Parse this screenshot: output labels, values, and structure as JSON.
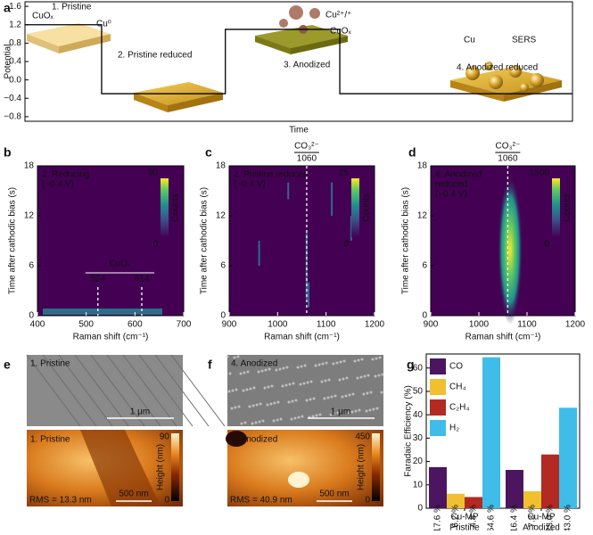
{
  "chart_data": [
    {
      "type": "line",
      "panel": "a",
      "ylabel": "Potential",
      "xlabel": "Time",
      "color": "#000000",
      "x": [
        0,
        14,
        14,
        36.6,
        36.6,
        57.5,
        57.5,
        100
      ],
      "values": [
        1.2,
        1.2,
        -0.3,
        -0.3,
        1.1,
        1.1,
        -0.3,
        -0.3
      ],
      "xlim": [
        0,
        100
      ],
      "ylim": [
        -0.9,
        1.7
      ],
      "yticks": [
        {
          "value": -0.8,
          "label": "−0.8"
        },
        {
          "value": -0.4,
          "label": "−0.4"
        },
        {
          "value": 0,
          "label": "0.0"
        },
        0.4,
        0.8,
        1.2,
        1.6
      ],
      "annotations": [
        "1. Pristine",
        "CuOₓ",
        "Cu⁰",
        "2. Pristine reduced",
        "3. Anodized",
        "Cu²⁺/⁺",
        "CuOₓ",
        "4. Anodized reduced",
        "Cu",
        "SERS"
      ]
    },
    {
      "type": "heatmap",
      "panel": "b",
      "label_lines": [
        "2. Reducing",
        "(−0.4 V)"
      ],
      "xlabel": "Raman shift (cm⁻¹)",
      "ylabel": "Time after cathodic bias (s)",
      "xlim": [
        400,
        700
      ],
      "xticks": [
        400,
        500,
        600,
        700
      ],
      "ylim": [
        0,
        18
      ],
      "yticks": [
        0,
        6,
        12,
        18
      ],
      "markers": [
        524,
        614
      ],
      "marker_title": "CuOₓ",
      "clim": [
        0,
        90
      ],
      "cticks": [
        0,
        90
      ],
      "clabel": "Counts"
    },
    {
      "type": "heatmap",
      "panel": "c",
      "label_lines": [
        "2. Pristine reduced",
        "(−0.4 V)"
      ],
      "xlabel": "Raman shift (cm⁻¹)",
      "ylabel": "Time after cathodic bias (s)",
      "xlim": [
        900,
        1200
      ],
      "xticks": [
        900,
        1000,
        1100,
        1200
      ],
      "ylim": [
        0,
        18
      ],
      "yticks": [
        0,
        6,
        12,
        18
      ],
      "markers": [
        1060
      ],
      "marker_title": "CO₃²⁻",
      "clim": [
        0,
        25
      ],
      "cticks": [
        0,
        25
      ],
      "clabel": "Counts"
    },
    {
      "type": "heatmap",
      "panel": "d",
      "label_lines": [
        "4. Anodized",
        "reduced",
        "(−0.4 V)"
      ],
      "xlabel": "Raman shift (cm⁻¹)",
      "ylabel": "Time after cathodic bias (s)",
      "xlim": [
        900,
        1200
      ],
      "xticks": [
        900,
        1000,
        1100,
        1200
      ],
      "ylim": [
        0,
        18
      ],
      "yticks": [
        0,
        6,
        12,
        18
      ],
      "markers": [
        1060
      ],
      "marker_title": "CO₃²⁻",
      "clim": [
        0,
        1500
      ],
      "cticks": [
        0,
        1500
      ],
      "clabel": "Counts"
    },
    {
      "type": "bar",
      "panel": "g",
      "ylabel": "Faradaic Efficiency (%)",
      "categories": [
        [
          "Cu-MP",
          "Pristine"
        ],
        [
          "Cu-MP",
          "Anodized"
        ]
      ],
      "ylim": [
        0,
        66
      ],
      "yticks": [
        0,
        10,
        20,
        30,
        40,
        50,
        60
      ],
      "series": [
        {
          "name": "CO",
          "color": "#4b165f",
          "values": [
            17.6,
            16.4
          ],
          "value_labels": [
            "17.6 %",
            "16.4 %"
          ]
        },
        {
          "name": "CH₄",
          "color": "#f0c030",
          "values": [
            6.2,
            7.3
          ],
          "value_labels": [
            "6.2 %",
            "7.3 %"
          ]
        },
        {
          "name": "C₂H₄",
          "color": "#b22a22",
          "values": [
            4.8,
            23.0
          ],
          "value_labels": [
            "4.8 %",
            "23.0 %"
          ]
        },
        {
          "name": "H₂",
          "color": "#3fbde8",
          "values": [
            64.6,
            43.0
          ],
          "value_labels": [
            "64.6 %",
            "43.0 %"
          ]
        }
      ]
    }
  ],
  "images": [
    {
      "panel": "e",
      "sem_label": "1. Pristine",
      "sem_scale": "1 μm",
      "afm_label": "1. Pristine",
      "afm_max": "90",
      "afm_min": "0",
      "afm_unit": "Height (nm)",
      "rms": "RMS = 13.3 nm",
      "afm_scale": "500 nm"
    },
    {
      "panel": "f",
      "sem_label": "4. Anodized",
      "sem_scale": "1 μm",
      "afm_label": "4. Anodized",
      "afm_max": "450",
      "afm_min": "0",
      "afm_unit": "Height (nm)",
      "rms": "RMS = 40.9 nm",
      "afm_scale": "500 nm"
    }
  ]
}
